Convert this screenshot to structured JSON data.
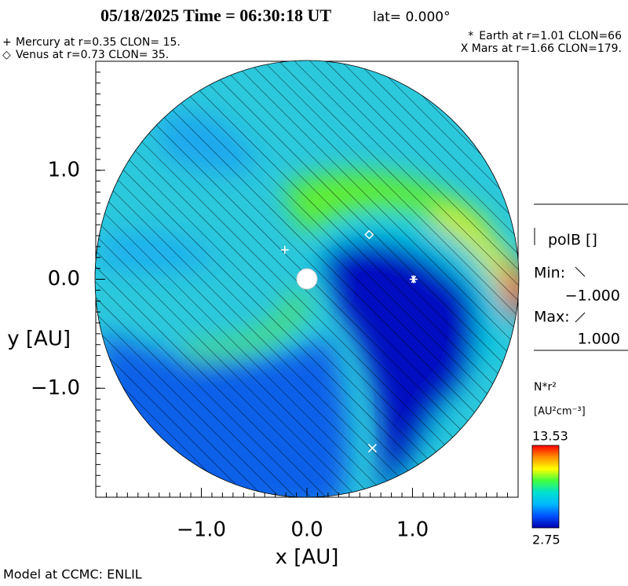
{
  "chart_data": {
    "type": "scatter",
    "title": "05/18/2025 Time = 06:30:18 UT",
    "subtitle": "lat= 0.000°",
    "xlabel": "x [AU]",
    "ylabel": "y [AU]",
    "xlim": [
      -2,
      2
    ],
    "ylim": [
      -2,
      2
    ],
    "xticks": [
      {
        "value": -1,
        "label": "−1.0"
      },
      {
        "value": 0,
        "label": "0.0"
      },
      {
        "value": 1,
        "label": "1.0"
      }
    ],
    "yticks": [
      {
        "value": -1,
        "label": "−1.0"
      },
      {
        "value": 0,
        "label": "0.0"
      },
      {
        "value": 1,
        "label": "1.0"
      }
    ],
    "minor_ticks": true,
    "series": [
      {
        "name": "Mercury at r=0.35 CLON= 15.",
        "symbol": "+",
        "color": "#ffffff",
        "x": [
          -0.21
        ],
        "values": [
          0.27
        ]
      },
      {
        "name": "Venus at r=0.73 CLON= 35.",
        "symbol": "◇",
        "color": "#ffffff",
        "x": [
          0.59
        ],
        "values": [
          0.41
        ]
      },
      {
        "name": "Earth at  r=1.01 CLON=66",
        "symbol": "*",
        "color": "#ffffff",
        "x": [
          1.01
        ],
        "values": [
          0
        ]
      },
      {
        "name": "Mars at r=1.66 CLON=179.",
        "symbol": "X",
        "color": "#ffffff",
        "x": [
          0.62
        ],
        "values": [
          -1.55
        ]
      }
    ],
    "polarity": {
      "label": "polB []",
      "min_label": "Min:",
      "min": {
        "value": -1,
        "label": "−1.000"
      },
      "max_label": "Max:",
      "max": {
        "value": 1,
        "label": "1.000"
      }
    },
    "colorbar": {
      "label": "N*r²",
      "units": "[AU²cm⁻³]",
      "min": 2.75,
      "max": 13.53,
      "colors": [
        "#0000b0",
        "#0050ff",
        "#00b8ff",
        "#00e0d0",
        "#40ff40",
        "#ffff00",
        "#ff9000",
        "#ff0000"
      ]
    },
    "footer": "Model at CCMC: ENLIL"
  }
}
